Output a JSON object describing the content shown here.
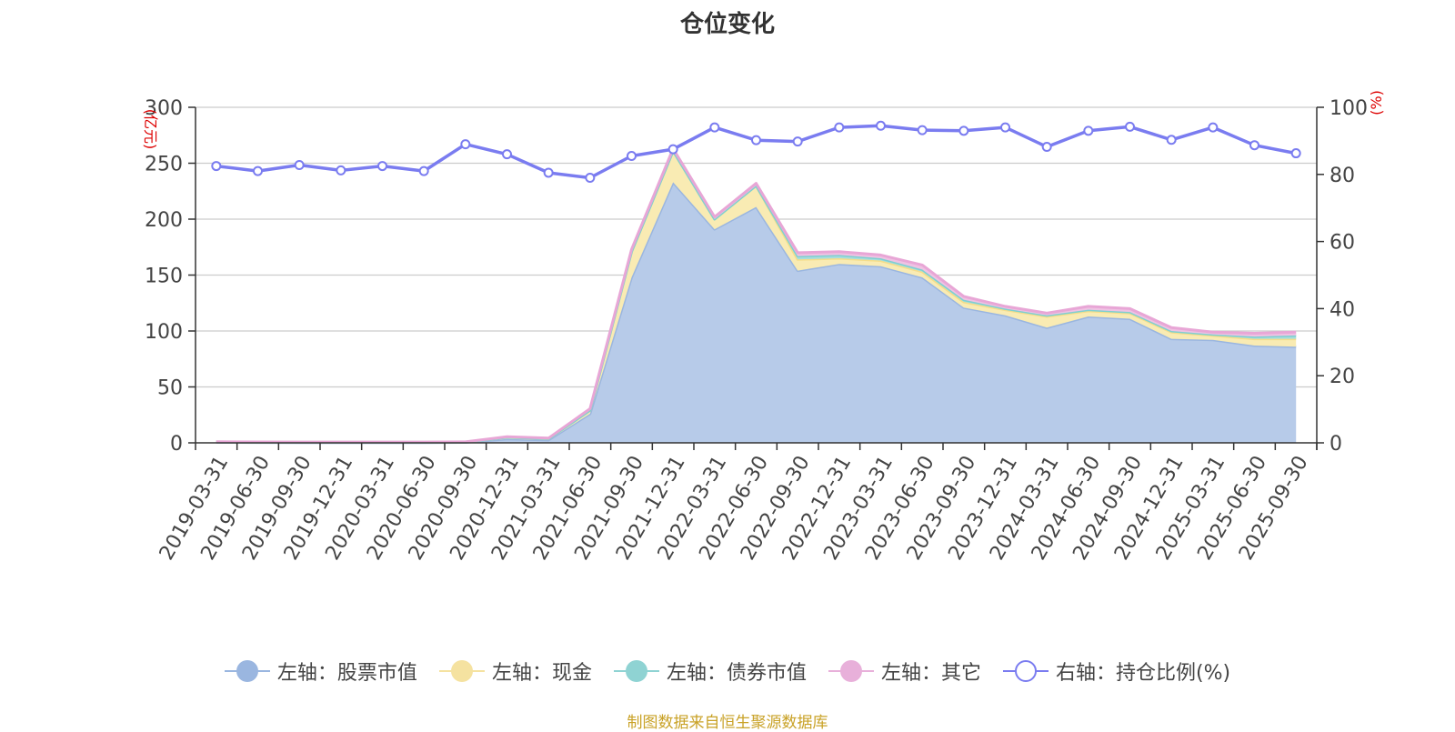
{
  "title": "仓位变化",
  "source": "制图数据来自恒生聚源数据库",
  "chart_data": {
    "type": "area",
    "title": "仓位变化",
    "left_axis": {
      "unit": "(亿元)",
      "ylim": [
        0,
        300
      ],
      "ticks": [
        0,
        50,
        100,
        150,
        200,
        250,
        300
      ]
    },
    "right_axis": {
      "unit": "(%)",
      "ylim": [
        0,
        100
      ],
      "ticks": [
        0,
        20,
        40,
        60,
        80,
        100
      ]
    },
    "categories": [
      "2019-03-31",
      "2019-06-30",
      "2019-09-30",
      "2019-12-31",
      "2020-03-31",
      "2020-06-30",
      "2020-09-30",
      "2020-12-31",
      "2021-03-31",
      "2021-06-30",
      "2021-09-30",
      "2021-12-31",
      "2022-03-31",
      "2022-06-30",
      "2022-09-30",
      "2022-12-31",
      "2023-03-31",
      "2023-06-30",
      "2023-09-30",
      "2023-12-31",
      "2024-03-31",
      "2024-06-30",
      "2024-09-30",
      "2024-12-31",
      "2025-03-31",
      "2025-06-30",
      "2025-09-30"
    ],
    "stacked_series": [
      {
        "name": "左轴：股票市值",
        "color": "#9ab6e0",
        "fill": "#b7cbe9",
        "values": [
          0.5,
          0.3,
          0.2,
          0.2,
          0.2,
          0.2,
          0.4,
          3.5,
          2.5,
          26,
          148,
          233,
          191,
          211,
          154,
          160,
          158,
          148,
          121,
          114,
          103,
          113,
          111,
          93,
          92,
          87,
          86
        ]
      },
      {
        "name": "左轴：现金",
        "color": "#f5dd8a",
        "fill": "#f9ebb3",
        "values": [
          0.3,
          0.3,
          0.3,
          0.3,
          0.3,
          0.3,
          0.3,
          1.5,
          1.2,
          3,
          23,
          28,
          9,
          19,
          10,
          5,
          5,
          5,
          5,
          5,
          10,
          5,
          5,
          6,
          4,
          6,
          7
        ]
      },
      {
        "name": "左轴：债券市值",
        "color": "#7fd0d0",
        "fill": "#a7dddd",
        "values": [
          0,
          0,
          0,
          0,
          0,
          0,
          0,
          0,
          0,
          0,
          0,
          0,
          0,
          0,
          3,
          3,
          2,
          2,
          2,
          1,
          1,
          1,
          1,
          1,
          1,
          2,
          3
        ]
      },
      {
        "name": "左轴：其它",
        "color": "#e8a6d6",
        "fill": "#efc2e3",
        "values": [
          0.2,
          0.2,
          0.2,
          0.2,
          0.2,
          0.2,
          0.2,
          0.5,
          0.5,
          1.5,
          2,
          2,
          2,
          2,
          3,
          3,
          3,
          4,
          3,
          2,
          2,
          3,
          3,
          3,
          2,
          3,
          3
        ]
      }
    ],
    "line_series": {
      "name": "右轴：持仓比例(%)",
      "color": "#7a7cf0",
      "values": [
        82.5,
        81,
        82.8,
        81.2,
        82.5,
        81,
        89,
        86,
        80.5,
        79,
        85.5,
        87.5,
        94,
        90.2,
        89.8,
        94,
        94.5,
        93.2,
        93,
        94,
        88.2,
        93,
        94.2,
        90.3,
        94,
        88.7,
        86.3
      ]
    },
    "legend_position": "bottom",
    "grid": true
  },
  "legend": [
    {
      "label": "左轴：股票市值",
      "color": "#9ab6e0",
      "hollow": false
    },
    {
      "label": "左轴：现金",
      "color": "#f5e2a0",
      "hollow": false
    },
    {
      "label": "左轴：债券市值",
      "color": "#8fd3d3",
      "hollow": false
    },
    {
      "label": "左轴：其它",
      "color": "#e8b0da",
      "hollow": false
    },
    {
      "label": "右轴：持仓比例(%)",
      "color": "#7a7cf0",
      "hollow": true
    }
  ]
}
